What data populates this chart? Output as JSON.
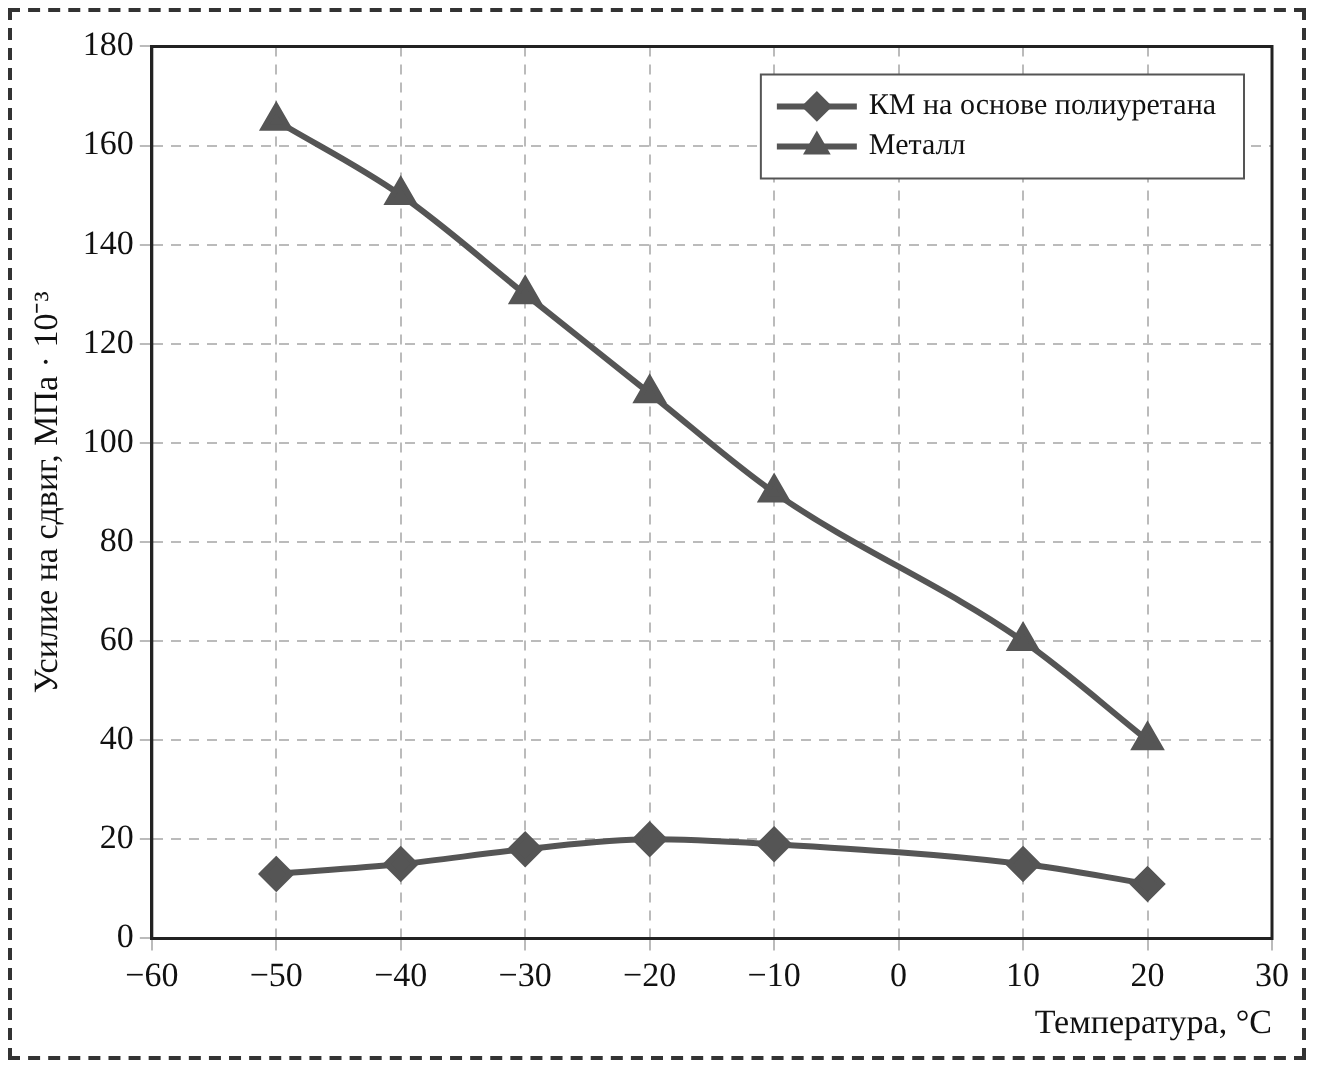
{
  "chart_data": {
    "type": "line",
    "xlabel": "Температура, °C",
    "ylabel": "Усилие на сдвиг, МПа · 10⁻³",
    "x": [
      -50,
      -40,
      -30,
      -20,
      -10,
      10,
      20
    ],
    "series": [
      {
        "name": "КМ на основе полиуретана",
        "color": "#555555",
        "marker": "diamond",
        "values": [
          13,
          15,
          18,
          20,
          19,
          15,
          11
        ]
      },
      {
        "name": "Металл",
        "color": "#555555",
        "marker": "triangle",
        "values": [
          165,
          150,
          130,
          110,
          90,
          60,
          40
        ]
      }
    ],
    "xlim": [
      -60,
      30
    ],
    "xticks": [
      -60,
      -50,
      -40,
      -30,
      -20,
      -10,
      0,
      10,
      20,
      30
    ],
    "ylim": [
      0,
      180
    ],
    "yticks": [
      0,
      20,
      40,
      60,
      80,
      100,
      120,
      140,
      160,
      180
    ],
    "grid": true,
    "legend": "top right",
    "line_style": "solid"
  }
}
